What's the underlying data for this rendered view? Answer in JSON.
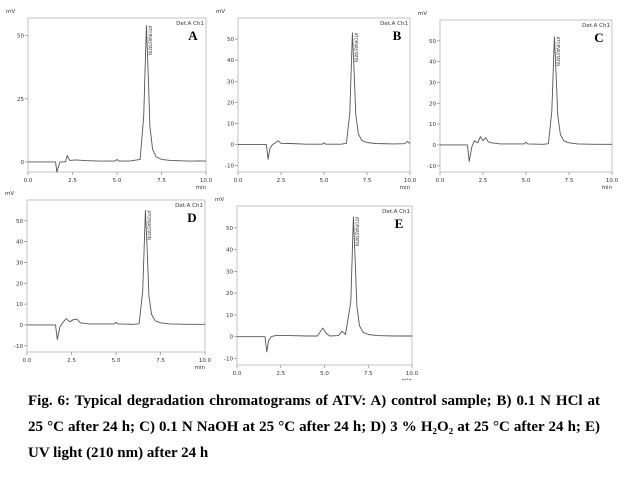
{
  "chart_data": [
    {
      "type": "line",
      "panel": "A",
      "channel": "Det.A Ch1",
      "y_unit": "mV",
      "x_unit": "min",
      "xlim": [
        0.0,
        10.0
      ],
      "ylim": [
        -4,
        57
      ],
      "xticks": [
        "0.0",
        "2.5",
        "5.0",
        "7.5",
        "10.0"
      ],
      "yticks": [
        "0",
        "25",
        "50"
      ],
      "peak_label": "ATORVASTATIN",
      "x": [
        0.0,
        1.0,
        1.55,
        1.62,
        1.7,
        1.8,
        2.1,
        2.2,
        2.35,
        2.7,
        3.2,
        4.0,
        4.9,
        5.0,
        5.1,
        5.7,
        6.3,
        6.5,
        6.65,
        6.75,
        6.85,
        7.0,
        7.2,
        7.5,
        8.0,
        9.0,
        9.3,
        9.5,
        10.0
      ],
      "y": [
        0,
        0,
        0,
        -4,
        -2,
        0,
        0,
        2.5,
        0.6,
        0.8,
        0.5,
        0.3,
        0.3,
        1,
        0.3,
        0.3,
        1,
        18,
        54,
        35,
        14,
        5,
        2,
        1,
        0.6,
        0.3,
        0.3,
        0.4,
        0.3
      ]
    },
    {
      "type": "line",
      "panel": "B",
      "channel": "Det.A Ch1",
      "y_unit": "mV",
      "x_unit": "min",
      "xlim": [
        0.0,
        10.0
      ],
      "ylim": [
        -13,
        60
      ],
      "xticks": [
        "0.0",
        "2.5",
        "5.0",
        "7.5",
        "10.0"
      ],
      "yticks": [
        "-10",
        "0",
        "10",
        "20",
        "30",
        "40",
        "50"
      ],
      "peak_label": "ATORVASTATIN",
      "x": [
        0.0,
        1.0,
        1.65,
        1.75,
        1.85,
        2.0,
        2.2,
        2.35,
        2.5,
        3.0,
        4.0,
        4.9,
        5.0,
        5.1,
        6.0,
        6.3,
        6.5,
        6.65,
        6.75,
        6.85,
        7.0,
        7.2,
        7.5,
        8.0,
        9.0,
        9.7,
        9.85,
        10.0
      ],
      "y": [
        0,
        0,
        0,
        -7,
        -2,
        0,
        1,
        1.8,
        0.6,
        0.5,
        0.2,
        0.2,
        0.8,
        0.2,
        0.2,
        0.6,
        15,
        53,
        35,
        14,
        5,
        2,
        1,
        0.5,
        0.3,
        0.4,
        1.5,
        0.5
      ]
    },
    {
      "type": "line",
      "panel": "C",
      "channel": "Det.A Ch1",
      "y_unit": "mV",
      "x_unit": "min",
      "xlim": [
        0.0,
        10.0
      ],
      "ylim": [
        -13,
        60
      ],
      "xticks": [
        "0.0",
        "2.5",
        "5.0",
        "7.5",
        "10.0"
      ],
      "yticks": [
        "-10",
        "0",
        "10",
        "20",
        "30",
        "40",
        "50"
      ],
      "peak_label": "ATORVASTATIN",
      "x": [
        0.0,
        1.0,
        1.6,
        1.7,
        1.85,
        2.0,
        2.2,
        2.35,
        2.5,
        2.65,
        2.8,
        3.0,
        3.5,
        4.0,
        4.9,
        5.0,
        5.1,
        6.0,
        6.3,
        6.5,
        6.65,
        6.75,
        6.85,
        7.0,
        7.2,
        7.5,
        8.0,
        9.0,
        10.0
      ],
      "y": [
        0,
        0,
        0,
        -8,
        -1,
        2,
        1,
        4,
        2,
        3.5,
        1.5,
        1,
        0.5,
        0.5,
        0.5,
        1.3,
        0.5,
        0.3,
        0.6,
        16,
        52,
        34,
        14,
        5,
        2,
        1,
        0.5,
        0.3,
        0.3
      ]
    },
    {
      "type": "line",
      "panel": "D",
      "channel": "Det.A Ch1",
      "y_unit": "mV",
      "x_unit": "min",
      "xlim": [
        0.0,
        10.0
      ],
      "ylim": [
        -13,
        60
      ],
      "xticks": [
        "0.0",
        "2.5",
        "5.0",
        "7.5",
        "10.0"
      ],
      "yticks": [
        "-10",
        "0",
        "10",
        "20",
        "30",
        "40",
        "50"
      ],
      "peak_label": "ATORVASTATIN",
      "x": [
        0.0,
        1.0,
        1.6,
        1.7,
        1.85,
        2.0,
        2.2,
        2.4,
        2.6,
        2.8,
        3.0,
        3.5,
        4.0,
        4.9,
        5.0,
        5.1,
        6.0,
        6.3,
        6.5,
        6.65,
        6.75,
        6.85,
        7.0,
        7.2,
        7.5,
        8.0,
        9.0,
        10.0
      ],
      "y": [
        0,
        0,
        0,
        -7,
        -1,
        1,
        3,
        1.5,
        2.5,
        2.8,
        1,
        0.5,
        0.5,
        0.5,
        1.2,
        0.5,
        0.3,
        0.6,
        16,
        55,
        36,
        14,
        5,
        2,
        1,
        0.5,
        0.3,
        0.3
      ]
    },
    {
      "type": "line",
      "panel": "E",
      "channel": "Det.A Ch1",
      "y_unit": "mV",
      "x_unit": "min",
      "xlim": [
        0.0,
        10.0
      ],
      "ylim": [
        -13,
        60
      ],
      "xticks": [
        "0.0",
        "2.5",
        "5.0",
        "7.5",
        "10.0"
      ],
      "yticks": [
        "-10",
        "0",
        "10",
        "20",
        "30",
        "40",
        "50"
      ],
      "peak_label": "ATORVASTATIN",
      "x": [
        0.0,
        1.0,
        1.6,
        1.7,
        1.8,
        1.95,
        2.2,
        2.5,
        3.0,
        4.0,
        4.6,
        4.9,
        5.1,
        5.3,
        5.8,
        6.0,
        6.2,
        6.5,
        6.65,
        6.75,
        6.85,
        7.0,
        7.2,
        7.5,
        8.0,
        9.0,
        10.0
      ],
      "y": [
        0,
        0,
        0,
        -7,
        -2,
        0,
        0.5,
        0.5,
        0.5,
        0.3,
        0.3,
        4,
        1.5,
        0.3,
        0.5,
        2.5,
        1,
        16,
        55,
        36,
        14,
        5,
        2,
        1,
        0.5,
        0.3,
        0.3
      ]
    }
  ],
  "caption": "Fig. 6: Typical degradation chromatograms of ATV: A) control sample; B) 0.1 N HCl at 25 °C after 24 h; C) 0.1 N NaOH at 25 °C after 24 h; D) 3 % H₂O₂ at 25 °C after 24 h; E) UV light (210 nm) after 24 h",
  "colors": {
    "trace": "#555555",
    "frame": "#b5b5b5",
    "text": "#000000"
  }
}
